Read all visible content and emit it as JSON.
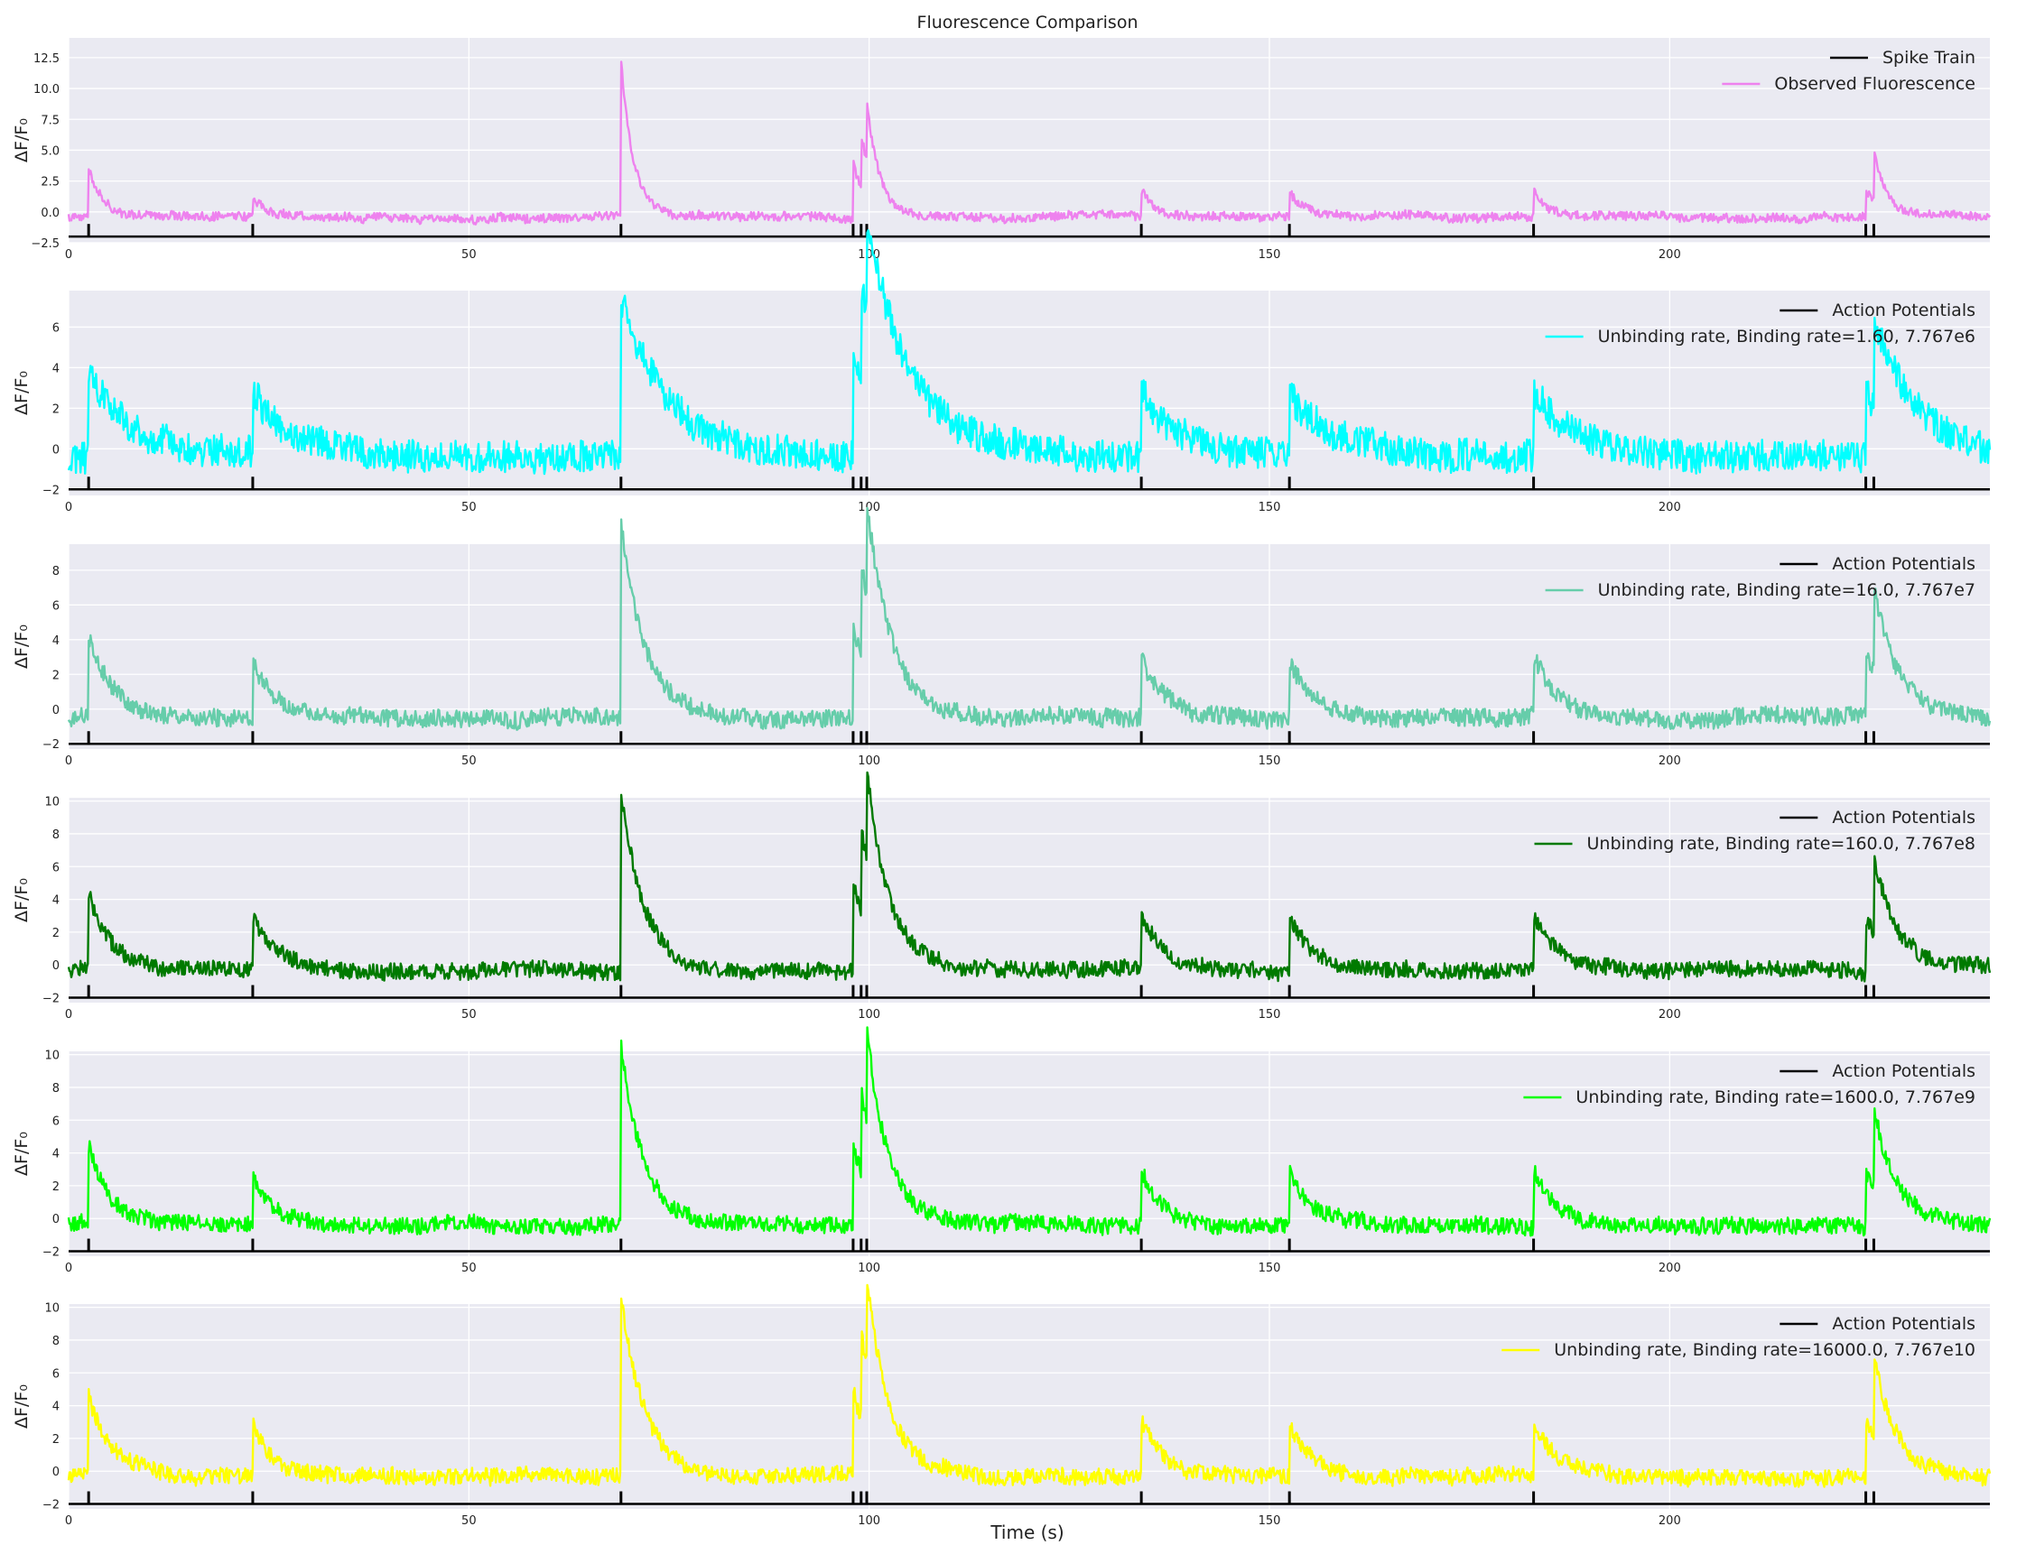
{
  "figure_title": "Fluorescence Comparison",
  "chart_data": {
    "type": "line",
    "title": "Fluorescence Comparison",
    "xlabel": "Time (s)",
    "x_range": [
      0,
      240
    ],
    "x_ticks": [
      0,
      50,
      100,
      150,
      200
    ],
    "spike_times": [
      2.5,
      23,
      69,
      98,
      99,
      99.7,
      134,
      152.5,
      183,
      224.5,
      225.5
    ],
    "peak_amplitudes": [
      4.0,
      1.8,
      12.5,
      4.5,
      4.5,
      5.0,
      2.3,
      2.0,
      2.2,
      2.3,
      4.2
    ],
    "grid": true,
    "panels": [
      {
        "ylabel": "ΔF/F₀",
        "y_range": [
          -2.5,
          14.1
        ],
        "y_ticks": [
          -2.5,
          0.0,
          2.5,
          5.0,
          7.5,
          10.0,
          12.5
        ],
        "y_tick_labels": [
          "−2.5",
          "0.0",
          "2.5",
          "5.0",
          "7.5",
          "10.0",
          "12.5"
        ],
        "baseline": -0.4,
        "tau": 1.6,
        "noise": 0.35,
        "color": "#ee82ee",
        "spike_level": -2.0,
        "legend": [
          "Spike Train",
          "Observed Fluorescence"
        ],
        "series": [
          {
            "name": "Spike Train",
            "color": "#000000"
          },
          {
            "name": "Observed Fluorescence",
            "color": "#ee82ee"
          }
        ]
      },
      {
        "ylabel": "ΔF/F₀",
        "y_range": [
          -2.3,
          7.8
        ],
        "y_ticks": [
          -2,
          0,
          2,
          4,
          6
        ],
        "y_tick_labels": [
          "−2",
          "0",
          "2",
          "4",
          "6"
        ],
        "baseline": -0.4,
        "tau": 5.5,
        "noise": 0.8,
        "color": "#00ffff",
        "spike_level": -2.0,
        "legend": [
          "Action Potentials",
          "Unbinding rate, Binding rate=1.60, 7.767e6"
        ],
        "series": [
          {
            "name": "Action Potentials",
            "color": "#000000"
          },
          {
            "name": "Unbinding rate, Binding rate=1.60, 7.767e6",
            "color": "#00ffff"
          }
        ]
      },
      {
        "ylabel": "ΔF/F₀",
        "y_range": [
          -2.3,
          9.5
        ],
        "y_ticks": [
          -2,
          0,
          2,
          4,
          6,
          8
        ],
        "y_tick_labels": [
          "−2",
          "0",
          "2",
          "4",
          "6",
          "8"
        ],
        "baseline": -0.5,
        "tau": 3.0,
        "noise": 0.5,
        "color": "#66cdaa",
        "spike_level": -2.0,
        "legend": [
          "Action Potentials",
          "Unbinding rate, Binding rate=16.0, 7.767e7"
        ],
        "series": [
          {
            "name": "Action Potentials",
            "color": "#000000"
          },
          {
            "name": "Unbinding rate, Binding rate=16.0, 7.767e7",
            "color": "#66cdaa"
          }
        ]
      },
      {
        "ylabel": "ΔF/F₀",
        "y_range": [
          -2.3,
          10.2
        ],
        "y_ticks": [
          -2,
          0,
          2,
          4,
          6,
          8,
          10
        ],
        "y_tick_labels": [
          "−2",
          "0",
          "2",
          "4",
          "6",
          "8",
          "10"
        ],
        "baseline": -0.3,
        "tau": 2.8,
        "noise": 0.5,
        "color": "#007a00",
        "spike_level": -2.0,
        "legend": [
          "Action Potentials",
          "Unbinding rate, Binding rate=160.0, 7.767e8"
        ],
        "series": [
          {
            "name": "Action Potentials",
            "color": "#000000"
          },
          {
            "name": "Unbinding rate, Binding rate=160.0, 7.767e8",
            "color": "#007a00"
          }
        ]
      },
      {
        "ylabel": "ΔF/F₀",
        "y_range": [
          -2.3,
          10.2
        ],
        "y_ticks": [
          -2,
          0,
          2,
          4,
          6,
          8,
          10
        ],
        "y_tick_labels": [
          "−2",
          "0",
          "2",
          "4",
          "6",
          "8",
          "10"
        ],
        "baseline": -0.4,
        "tau": 2.8,
        "noise": 0.5,
        "color": "#00ff00",
        "spike_level": -2.0,
        "legend": [
          "Action Potentials",
          "Unbinding rate, Binding rate=1600.0, 7.767e9"
        ],
        "series": [
          {
            "name": "Action Potentials",
            "color": "#000000"
          },
          {
            "name": "Unbinding rate, Binding rate=1600.0, 7.767e9",
            "color": "#00ff00"
          }
        ]
      },
      {
        "ylabel": "ΔF/F₀",
        "y_range": [
          -2.3,
          10.2
        ],
        "y_ticks": [
          -2,
          0,
          2,
          4,
          6,
          8,
          10
        ],
        "y_tick_labels": [
          "−2",
          "0",
          "2",
          "4",
          "6",
          "8",
          "10"
        ],
        "baseline": -0.3,
        "tau": 2.8,
        "noise": 0.5,
        "color": "#ffff00",
        "spike_level": -2.0,
        "legend": [
          "Action Potentials",
          "Unbinding rate, Binding rate=16000.0, 7.767e10"
        ],
        "series": [
          {
            "name": "Action Potentials",
            "color": "#000000"
          },
          {
            "name": "Unbinding rate, Binding rate=16000.0, 7.767e10",
            "color": "#ffff00"
          }
        ]
      }
    ]
  }
}
